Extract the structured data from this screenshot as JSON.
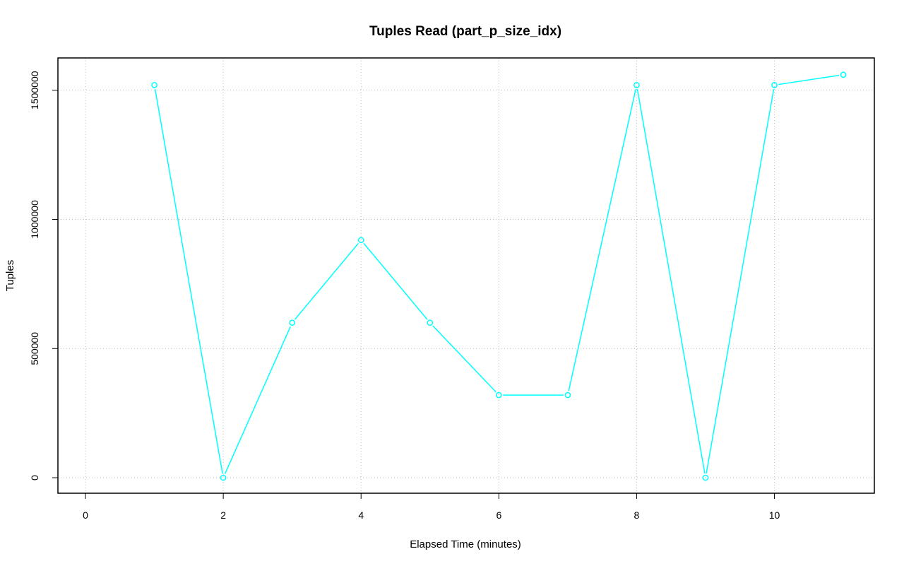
{
  "chart_data": {
    "type": "line",
    "title": "Tuples Read (part_p_size_idx)",
    "xlabel": "Elapsed Time (minutes)",
    "ylabel": "Tuples",
    "xlim": [
      -0.4,
      11.45
    ],
    "ylim": [
      -60000,
      1625000
    ],
    "x_ticks": [
      0,
      2,
      4,
      6,
      8,
      10
    ],
    "x_tick_labels": [
      "0",
      "2",
      "4",
      "6",
      "8",
      "10"
    ],
    "y_ticks": [
      0,
      500000,
      1000000,
      1500000
    ],
    "y_tick_labels": [
      "0",
      "500000",
      "1000000",
      "1500000"
    ],
    "grid": true,
    "legend": "none",
    "series": [
      {
        "color": "#00ffff",
        "marker": "open-circle",
        "x": [
          1,
          2,
          3,
          4,
          5,
          6,
          7,
          8,
          9,
          10,
          11
        ],
        "y": [
          1520000,
          0,
          600000,
          920000,
          600000,
          320000,
          320000,
          1520000,
          0,
          1520000,
          1560000
        ]
      }
    ]
  }
}
